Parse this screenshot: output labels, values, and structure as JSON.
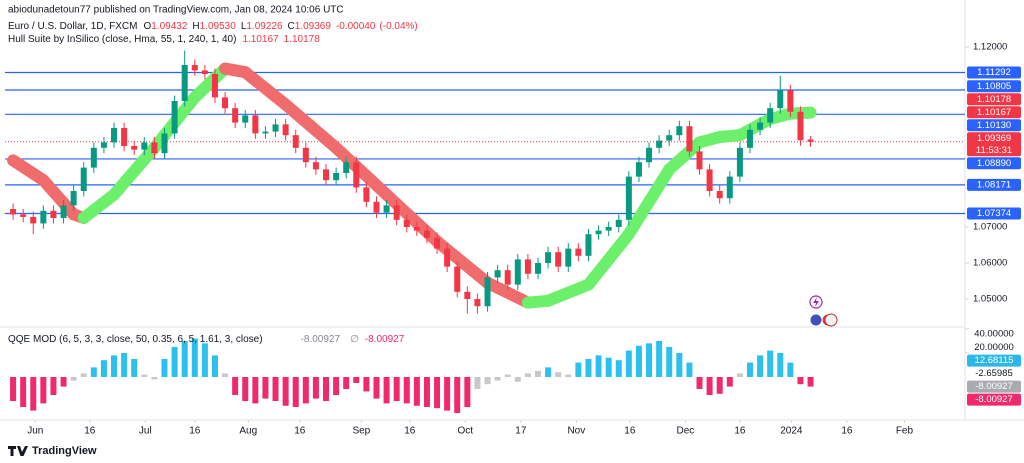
{
  "header": {
    "publisher": "abiodunadetoun77 published on TradingView.com, Jan 08, 2024 10:06 UTC"
  },
  "footer": {
    "brand": "TradingView"
  },
  "chart_data": [
    {
      "type": "candlestick",
      "title": "Euro / U.S. Dollar, 1D, FXCM",
      "legend": {
        "labels": [
          "O",
          "H",
          "L",
          "C"
        ],
        "value_labels": [
          "1.09432",
          "1.09530",
          "1.09226",
          "1.09369"
        ]
      },
      "change": {
        "value": -0.0004,
        "label": "-0.00040"
      },
      "change_pct": {
        "value": -0.04,
        "label": "(-0.04%)"
      },
      "countdown": "11:53:31",
      "up_color": "#089981",
      "down_color": "#f23645",
      "open": [
        1.075,
        1.0735,
        1.0728,
        1.071,
        1.0745,
        1.0725,
        1.076,
        1.08,
        1.0865,
        1.092,
        1.0935,
        1.0975,
        1.0925,
        1.0915,
        1.0935,
        1.0905,
        1.096,
        1.105,
        1.115,
        1.1135,
        1.1125,
        1.106,
        1.103,
        1.099,
        1.101,
        1.096,
        1.0965,
        1.0985,
        1.0955,
        1.092,
        1.088,
        1.086,
        1.083,
        1.085,
        1.088,
        1.081,
        1.077,
        1.074,
        1.076,
        1.072,
        1.07,
        1.069,
        1.067,
        1.064,
        1.059,
        1.052,
        1.05,
        1.048,
        1.056,
        1.058,
        1.054,
        1.061,
        1.057,
        1.06,
        1.063,
        1.059,
        1.064,
        1.062,
        1.068,
        1.069,
        1.07,
        1.072,
        1.084,
        1.088,
        1.092,
        1.094,
        1.0955,
        1.098,
        1.091,
        1.086,
        1.08,
        1.078,
        1.084,
        1.092,
        1.097,
        1.099,
        1.103,
        1.108,
        1.102,
        1.09432
      ],
      "high": [
        1.0765,
        1.075,
        1.0743,
        1.076,
        1.076,
        1.0775,
        1.0815,
        1.088,
        1.0935,
        1.095,
        1.099,
        1.099,
        1.094,
        1.095,
        1.095,
        1.0975,
        1.1065,
        1.119,
        1.1165,
        1.115,
        1.114,
        1.1075,
        1.1045,
        1.1025,
        1.1025,
        1.098,
        1.1,
        1.1,
        1.097,
        1.0935,
        1.0895,
        1.0875,
        1.0865,
        1.0895,
        1.0895,
        1.0825,
        1.0785,
        1.0775,
        1.0775,
        1.0735,
        1.0715,
        1.0705,
        1.0685,
        1.0655,
        1.0605,
        1.0535,
        1.0515,
        1.0575,
        1.0595,
        1.0595,
        1.0625,
        1.0625,
        1.0615,
        1.0645,
        1.0645,
        1.0655,
        1.0655,
        1.0695,
        1.0705,
        1.0715,
        1.0735,
        1.0855,
        1.0895,
        1.0935,
        1.0955,
        1.097,
        1.0995,
        1.0995,
        1.0925,
        1.0875,
        1.0815,
        1.0855,
        1.0935,
        1.0985,
        1.1005,
        1.1045,
        1.112,
        1.1095,
        1.1035,
        1.0953
      ],
      "low": [
        1.072,
        1.0713,
        1.068,
        1.0695,
        1.071,
        1.071,
        1.0745,
        1.0785,
        1.085,
        1.0905,
        1.092,
        1.091,
        1.09,
        1.09,
        1.089,
        1.089,
        1.0945,
        1.1035,
        1.112,
        1.111,
        1.1045,
        1.1015,
        1.0975,
        1.0975,
        1.0945,
        1.0945,
        1.095,
        1.094,
        1.0905,
        1.0865,
        1.0845,
        1.0815,
        1.0815,
        1.0835,
        1.0795,
        1.0755,
        1.0725,
        1.0725,
        1.0705,
        1.0685,
        1.0675,
        1.0655,
        1.0625,
        1.0575,
        1.0505,
        1.046,
        1.046,
        1.0465,
        1.0545,
        1.0525,
        1.0525,
        1.0555,
        1.0555,
        1.0585,
        1.0575,
        1.0575,
        1.0605,
        1.0605,
        1.0665,
        1.0675,
        1.0685,
        1.0705,
        1.0825,
        1.0865,
        1.0905,
        1.0925,
        1.094,
        1.0895,
        1.0845,
        1.0785,
        1.0765,
        1.0765,
        1.0825,
        1.0905,
        1.0955,
        1.0975,
        1.1015,
        1.1005,
        1.0926,
        1.09226
      ],
      "close": [
        1.0735,
        1.0728,
        1.071,
        1.0745,
        1.0725,
        1.076,
        1.08,
        1.0865,
        1.092,
        1.0935,
        1.0975,
        1.0925,
        1.0915,
        1.0935,
        1.0905,
        1.096,
        1.105,
        1.115,
        1.1135,
        1.1125,
        1.106,
        1.103,
        1.099,
        1.101,
        1.096,
        1.0965,
        1.0985,
        1.0955,
        1.092,
        1.088,
        1.086,
        1.083,
        1.085,
        1.088,
        1.081,
        1.077,
        1.074,
        1.076,
        1.072,
        1.07,
        1.069,
        1.067,
        1.064,
        1.059,
        1.052,
        1.05,
        1.048,
        1.056,
        1.058,
        1.054,
        1.061,
        1.057,
        1.06,
        1.063,
        1.059,
        1.064,
        1.062,
        1.068,
        1.069,
        1.07,
        1.072,
        1.084,
        1.088,
        1.092,
        1.094,
        1.0955,
        1.098,
        1.091,
        1.086,
        1.08,
        1.078,
        1.084,
        1.092,
        1.097,
        1.099,
        1.103,
        1.108,
        1.102,
        1.0941,
        1.09369
      ],
      "xlim": [
        -0.8,
        94.3
      ],
      "xticks": [
        {
          "value": 2.2,
          "label": "Jun"
        },
        {
          "value": 7.6,
          "label": "16"
        },
        {
          "value": 13.1,
          "label": "Jul"
        },
        {
          "value": 18.0,
          "label": "16"
        },
        {
          "value": 23.3,
          "label": "Aug"
        },
        {
          "value": 28.4,
          "label": "16"
        },
        {
          "value": 34.5,
          "label": "Sep"
        },
        {
          "value": 39.3,
          "label": "16"
        },
        {
          "value": 44.8,
          "label": "Oct"
        },
        {
          "value": 50.3,
          "label": "17"
        },
        {
          "value": 55.8,
          "label": "Nov"
        },
        {
          "value": 61.1,
          "label": "16"
        },
        {
          "value": 66.6,
          "label": "Dec"
        },
        {
          "value": 72.0,
          "label": "16"
        },
        {
          "value": 77.1,
          "label": "2024"
        },
        {
          "value": 82.6,
          "label": "16"
        },
        {
          "value": 88.3,
          "label": "Feb"
        }
      ],
      "ylim": [
        1.04278,
        1.13083
      ],
      "yticks": [
        {
          "value": 1.12,
          "label": "1.12000"
        },
        {
          "value": 1.07,
          "label": "1.07000"
        },
        {
          "value": 1.06,
          "label": "1.06000"
        },
        {
          "value": 1.05,
          "label": "1.05000"
        }
      ],
      "levels": [
        1.11292,
        1.10805,
        {
          "value": 1.1013,
          "label": "1.10130"
        },
        {
          "value": 1.0889,
          "label": "1.08890"
        },
        1.08171,
        1.07374
      ],
      "level_color": "#2962ff",
      "hull": {
        "title": "Hull Suite by InSilico (close, Hma, 55, 1, 240, 1, 40)",
        "x": [
          0,
          3,
          6,
          7,
          10,
          14,
          18,
          21,
          23,
          27,
          32,
          37,
          42,
          47,
          51,
          53,
          57,
          61,
          65,
          68,
          70,
          72,
          75,
          77,
          79
        ],
        "values": [
          1.0885,
          1.083,
          1.0735,
          1.0725,
          1.079,
          1.092,
          1.106,
          1.114,
          1.113,
          1.104,
          1.092,
          1.079,
          1.066,
          1.0545,
          1.049,
          1.0495,
          1.054,
          1.068,
          1.086,
          1.0935,
          1.095,
          1.0955,
          1.1,
          1.1015,
          1.10178
        ],
        "lag_last": 1.10167,
        "up_color": "#6cf06c",
        "down_color": "#f06c6c",
        "label_color": "#f23645"
      }
    },
    {
      "type": "histogram",
      "title": "QQE MOD (6, 5, 3, 3, close, 50, 0.35, 6, 5, 1.61, 3, close)",
      "null_symbol": "∅",
      "values": [
        -20,
        -25,
        -28,
        -22,
        -15,
        -8,
        -3,
        3,
        8,
        14,
        18,
        20,
        15,
        2,
        -2,
        15,
        25,
        30,
        32,
        28,
        18,
        3,
        -15,
        -20,
        -22,
        -18,
        -20,
        -24,
        -25,
        -22,
        -18,
        -20,
        -15,
        -10,
        -5,
        -12,
        -18,
        -22,
        -20,
        -22,
        -24,
        -25,
        -26,
        -28,
        -30,
        -25,
        -10,
        -6,
        -3,
        2,
        -4,
        3,
        5,
        8,
        4,
        2,
        12,
        15,
        18,
        16,
        14,
        22,
        26,
        28,
        30,
        25,
        20,
        12,
        -10,
        -15,
        -14,
        -8,
        3,
        12,
        18,
        22,
        20,
        12,
        -6,
        -8.00927
      ],
      "colors": [
        "#ee2a6a",
        "#ee2a6a",
        "#ee2a6a",
        "#ee2a6a",
        "#ee2a6a",
        "#ee2a6a",
        "#c8c8c8",
        "#c8c8c8",
        "#2cc0ef",
        "#2cc0ef",
        "#2cc0ef",
        "#2cc0ef",
        "#2cc0ef",
        "#c8c8c8",
        "#c8c8c8",
        "#2cc0ef",
        "#2cc0ef",
        "#2cc0ef",
        "#2cc0ef",
        "#2cc0ef",
        "#2cc0ef",
        "#c8c8c8",
        "#ee2a6a",
        "#ee2a6a",
        "#ee2a6a",
        "#ee2a6a",
        "#ee2a6a",
        "#ee2a6a",
        "#ee2a6a",
        "#ee2a6a",
        "#ee2a6a",
        "#ee2a6a",
        "#ee2a6a",
        "#ee2a6a",
        "#ee2a6a",
        "#ee2a6a",
        "#ee2a6a",
        "#ee2a6a",
        "#ee2a6a",
        "#ee2a6a",
        "#ee2a6a",
        "#ee2a6a",
        "#ee2a6a",
        "#ee2a6a",
        "#ee2a6a",
        "#ee2a6a",
        "#c8c8c8",
        "#c8c8c8",
        "#c8c8c8",
        "#c8c8c8",
        "#c8c8c8",
        "#c8c8c8",
        "#c8c8c8",
        "#2cc0ef",
        "#c8c8c8",
        "#c8c8c8",
        "#2cc0ef",
        "#2cc0ef",
        "#2cc0ef",
        "#2cc0ef",
        "#2cc0ef",
        "#2cc0ef",
        "#2cc0ef",
        "#2cc0ef",
        "#2cc0ef",
        "#2cc0ef",
        "#2cc0ef",
        "#2cc0ef",
        "#ee2a6a",
        "#ee2a6a",
        "#ee2a6a",
        "#ee2a6a",
        "#c8c8c8",
        "#2cc0ef",
        "#2cc0ef",
        "#2cc0ef",
        "#2cc0ef",
        "#2cc0ef",
        "#ee2a6a",
        "#ee2a6a"
      ],
      "ylim": [
        -40,
        43.3
      ],
      "yticks": [
        {
          "value": 40,
          "label": "40.00000"
        },
        {
          "value": 20,
          "label": "20.00000"
        }
      ],
      "markers": [
        12.68115,
        -2.65985
      ],
      "marker_colors": [
        "#2cb6ea",
        "none"
      ],
      "line_color": "#a9abb2"
    }
  ]
}
